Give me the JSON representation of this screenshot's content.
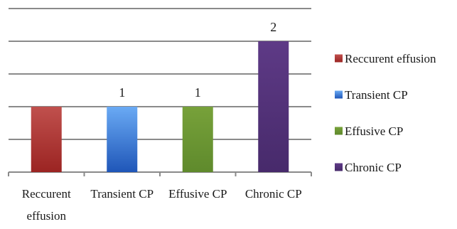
{
  "chart_data": {
    "type": "bar",
    "title": "",
    "xlabel": "",
    "ylabel": "",
    "categories": [
      "Reccurent effusion",
      "Transient CP",
      "Effusive CP",
      "Chronic CP"
    ],
    "category_lines": [
      [
        "Reccurent",
        "effusion"
      ],
      [
        "Transient CP"
      ],
      [
        "Effusive CP"
      ],
      [
        "Chronic CP"
      ]
    ],
    "values": [
      1,
      1,
      1,
      2
    ],
    "data_labels": [
      "",
      "1",
      "1",
      "2"
    ],
    "ylim": [
      0,
      2.5
    ],
    "grid": true,
    "legend_position": "right",
    "colors": [
      {
        "top": "#c0504d",
        "bottom": "#9b2422"
      },
      {
        "top": "#6aaaf4",
        "bottom": "#1f56b8"
      },
      {
        "top": "#77a13a",
        "bottom": "#5f8a2c"
      },
      {
        "top": "#5e3a86",
        "bottom": "#472a6b"
      }
    ],
    "legend": [
      "Reccurent effusion",
      "Transient CP",
      "Effusive CP",
      "Chronic CP"
    ]
  }
}
